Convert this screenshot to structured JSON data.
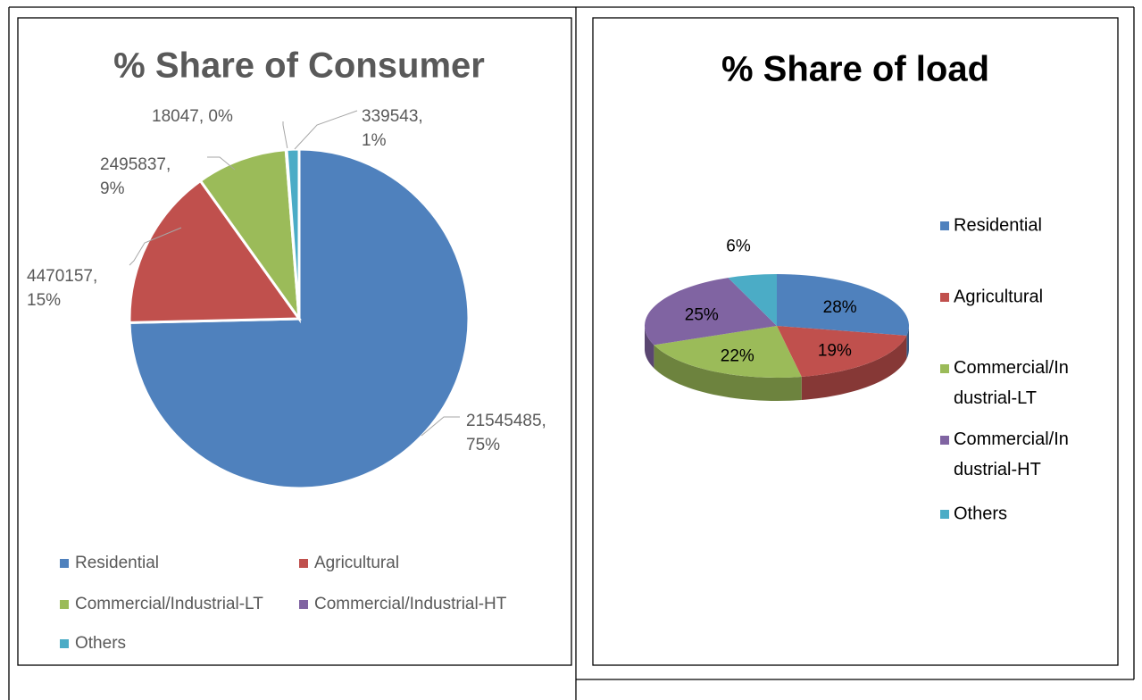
{
  "chart_data": [
    {
      "type": "pie",
      "title": "% Share of Consumer",
      "categories": [
        "Residential",
        "Agricultural",
        "Commercial/Industrial-LT",
        "Commercial/Industrial-HT",
        "Others"
      ],
      "values": [
        21545485,
        4470157,
        2495837,
        18047,
        339543
      ],
      "value_labels": [
        "21545485, 75%",
        "4470157, 15%",
        "2495837, 9%",
        "18047, 0%",
        "339543, 1%"
      ],
      "colors": [
        "#4f81bd",
        "#c0504d",
        "#9bbb59",
        "#8064a2",
        "#4bacc6"
      ],
      "legend": "bottom"
    },
    {
      "type": "pie3d",
      "title": "% Share of load",
      "categories": [
        "Residential",
        "Agricultural",
        "Commercial/Industrial-LT",
        "Commercial/Industrial-HT",
        "Others"
      ],
      "values": [
        28,
        19,
        22,
        25,
        6
      ],
      "value_labels": [
        "28%",
        "19%",
        "22%",
        "25%",
        "6%"
      ],
      "colors": [
        "#4f81bd",
        "#c0504d",
        "#9bbb59",
        "#8064a2",
        "#4bacc6"
      ],
      "legend": "right"
    }
  ]
}
